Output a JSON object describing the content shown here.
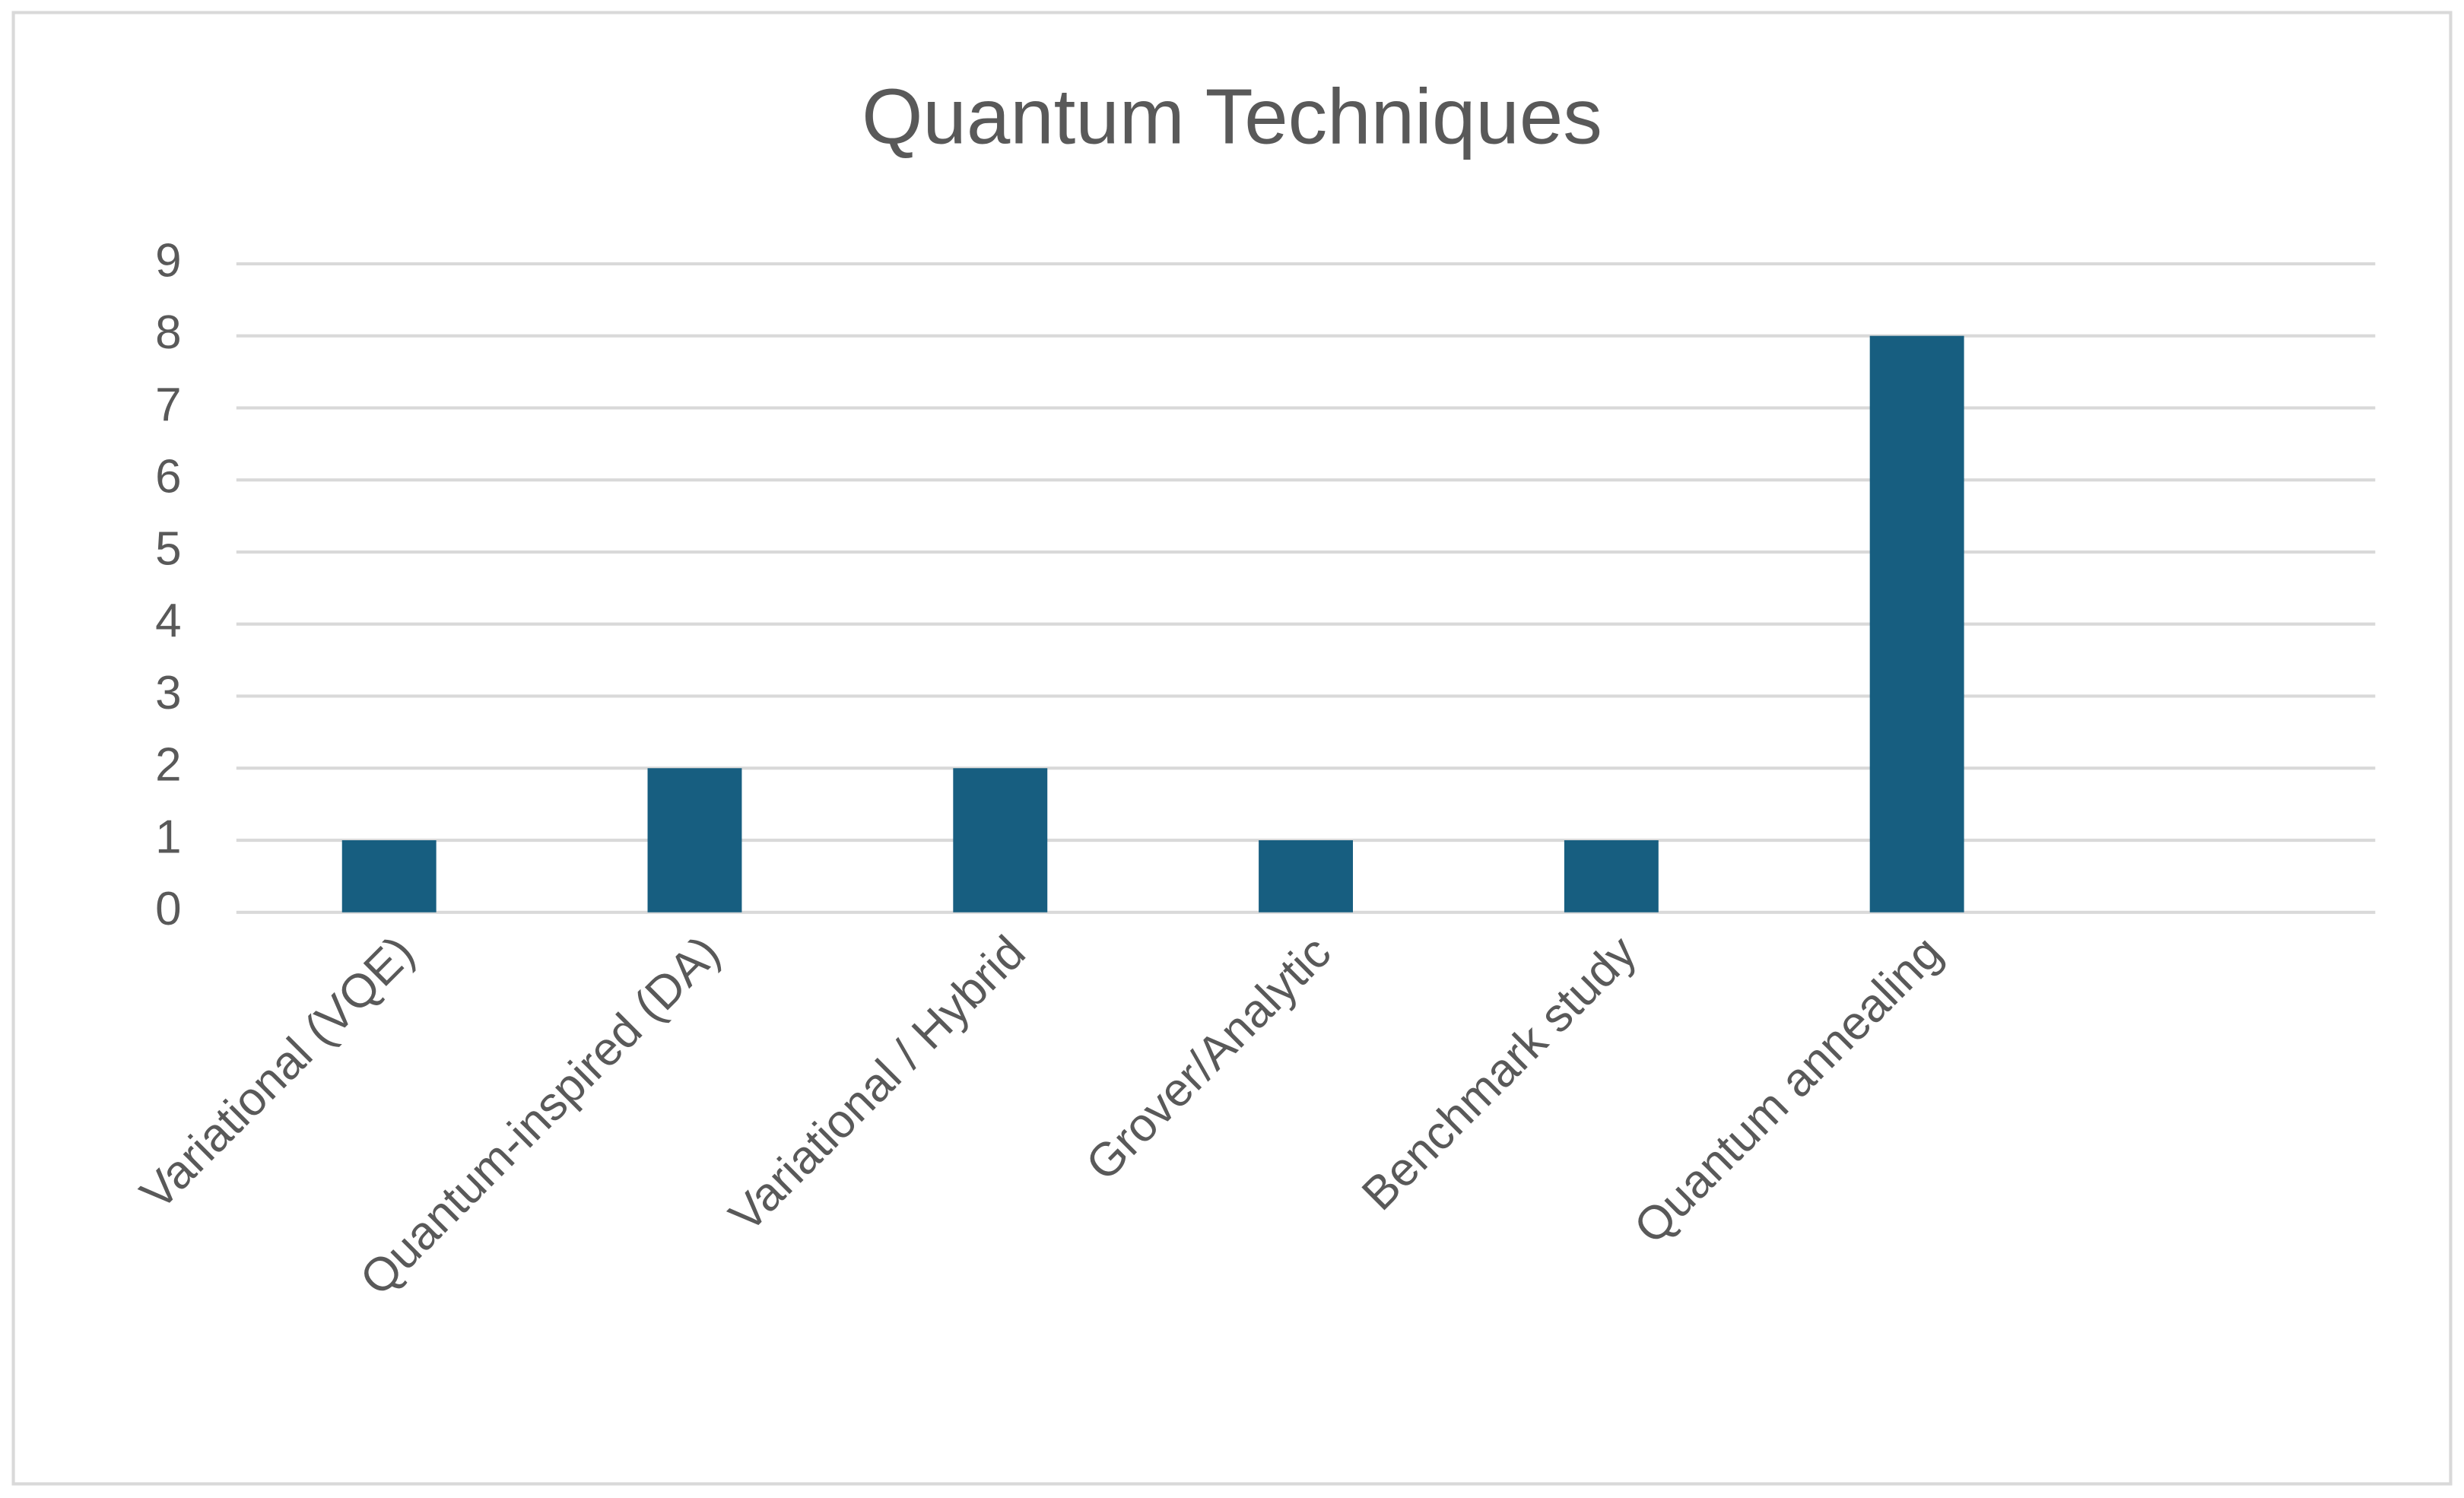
{
  "chart_data": {
    "type": "bar",
    "title": "Quantum Techniques",
    "categories": [
      "Variational (VQE)",
      "Quantum-inspired (DA)",
      "Variational / Hybrid",
      "Grover/Analytic",
      "Benchmark study",
      "Quantum annealing",
      null
    ],
    "values": [
      1,
      2,
      2,
      1,
      1,
      8,
      null
    ],
    "color": "#175e80",
    "ylim": [
      0,
      9
    ],
    "yticks": [
      0,
      1,
      2,
      3,
      4,
      5,
      6,
      7,
      8,
      9
    ],
    "grid": true
  }
}
